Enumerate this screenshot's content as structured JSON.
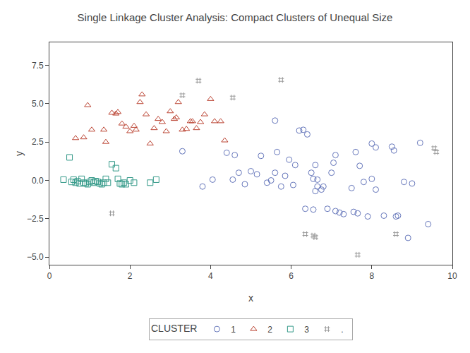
{
  "chart_data": {
    "type": "scatter",
    "title": "Single Linkage Cluster Analysis: Compact Clusters of Unequal Size",
    "xlabel": "x",
    "ylabel": "y",
    "legend_title": "CLUSTER",
    "xlim": [
      0,
      10
    ],
    "ylim": [
      -5.5,
      9.0
    ],
    "xticks": [
      0,
      2,
      4,
      6,
      8,
      10
    ],
    "yticks": [
      {
        "value": -5.0,
        "label": "−5.0"
      },
      {
        "value": -2.5,
        "label": "−2.5"
      },
      {
        "value": 0.0,
        "label": "0.0"
      },
      {
        "value": 2.5,
        "label": "2.5"
      },
      {
        "value": 5.0,
        "label": "5.0"
      },
      {
        "value": 7.5,
        "label": "7.5"
      }
    ],
    "grid": false,
    "legend": "bottom",
    "series": [
      {
        "name": "1",
        "color": "#6677bb",
        "marker": "circle",
        "x": [
          3.3,
          3.8,
          4.05,
          4.4,
          4.55,
          4.6,
          4.7,
          4.85,
          5.0,
          5.15,
          5.25,
          5.4,
          5.5,
          5.6,
          5.65,
          5.75,
          5.85,
          5.95,
          6.05,
          6.1,
          6.2,
          6.3,
          6.4,
          6.5,
          6.55,
          6.6,
          6.65,
          6.75,
          6.8,
          6.9,
          7.0,
          7.05,
          7.1,
          7.2,
          7.3,
          7.5,
          7.55,
          7.65,
          7.8,
          7.9,
          8.0,
          8.1,
          8.3,
          8.5,
          8.55,
          8.65,
          8.8,
          9.0,
          9.2,
          9.4,
          5.6,
          6.35,
          6.55,
          6.6,
          6.65,
          7.1,
          7.6,
          7.7,
          8.0,
          8.1,
          8.6,
          8.9
        ],
        "values": [
          1.9,
          -0.4,
          0.05,
          1.8,
          0.05,
          1.65,
          0.5,
          -0.25,
          0.6,
          0.4,
          1.6,
          -0.15,
          0.0,
          0.5,
          1.85,
          -0.4,
          0.3,
          1.35,
          -0.3,
          1.0,
          3.25,
          3.3,
          3.0,
          0.5,
          0.1,
          -0.7,
          0.05,
          -0.6,
          -0.4,
          -1.85,
          0.5,
          1.15,
          -2.0,
          -2.1,
          -2.2,
          -0.5,
          -2.05,
          -2.15,
          -0.1,
          -2.35,
          0.1,
          -0.6,
          -2.3,
          2.2,
          1.95,
          -2.3,
          -0.1,
          -0.2,
          2.45,
          -2.85,
          3.9,
          -1.85,
          -1.9,
          1.0,
          -0.4,
          1.65,
          1.85,
          0.95,
          2.4,
          2.15,
          -2.35,
          -3.75
        ]
      },
      {
        "name": "2",
        "color": "#bb4433",
        "marker": "triangle",
        "x": [
          0.65,
          0.85,
          0.95,
          1.05,
          1.35,
          1.4,
          1.55,
          1.65,
          1.7,
          1.8,
          1.9,
          2.0,
          2.1,
          2.15,
          2.25,
          2.3,
          2.4,
          2.5,
          2.6,
          2.7,
          2.8,
          2.9,
          3.0,
          3.1,
          3.15,
          3.2,
          3.3,
          3.4,
          3.5,
          3.55,
          3.65,
          3.75,
          3.85,
          4.0,
          4.1,
          4.25,
          4.35
        ],
        "values": [
          2.75,
          2.8,
          4.9,
          3.3,
          3.3,
          2.5,
          4.4,
          4.35,
          4.45,
          3.7,
          3.5,
          3.2,
          3.55,
          3.3,
          5.1,
          5.6,
          4.3,
          2.4,
          3.4,
          4.0,
          3.8,
          3.2,
          4.5,
          4.0,
          4.1,
          5.1,
          3.3,
          3.35,
          3.85,
          3.85,
          3.4,
          3.8,
          4.3,
          5.3,
          3.85,
          3.85,
          2.6
        ]
      },
      {
        "name": "3",
        "color": "#339988",
        "marker": "square",
        "x": [
          0.35,
          0.5,
          0.55,
          0.6,
          0.65,
          0.7,
          0.75,
          0.8,
          0.85,
          0.9,
          0.95,
          1.0,
          1.05,
          1.1,
          1.15,
          1.2,
          1.25,
          1.3,
          1.35,
          1.4,
          1.45,
          1.55,
          1.65,
          1.7,
          1.75,
          1.8,
          1.85,
          1.9,
          2.0,
          2.1,
          2.5,
          2.65
        ],
        "values": [
          0.05,
          1.5,
          -0.1,
          0.05,
          -0.15,
          -0.05,
          -0.2,
          0.1,
          -0.15,
          -0.2,
          -0.25,
          -0.1,
          0.0,
          -0.15,
          -0.05,
          -0.1,
          -0.2,
          -0.25,
          -0.15,
          0.1,
          -0.15,
          1.05,
          0.8,
          0.1,
          -0.2,
          -0.25,
          -0.15,
          -0.25,
          0.0,
          -0.15,
          -0.15,
          0.05
        ]
      },
      {
        "name": ".  ",
        "color": "#999999",
        "marker": "hash",
        "x": [
          3.3,
          4.55,
          3.7,
          5.75,
          6.35,
          6.55,
          6.6,
          7.65,
          8.6,
          9.55,
          9.6,
          1.55
        ],
        "values": [
          5.55,
          5.4,
          6.5,
          6.55,
          -3.5,
          -3.6,
          -3.7,
          -4.85,
          -3.5,
          2.1,
          1.85,
          -2.15
        ]
      }
    ]
  }
}
